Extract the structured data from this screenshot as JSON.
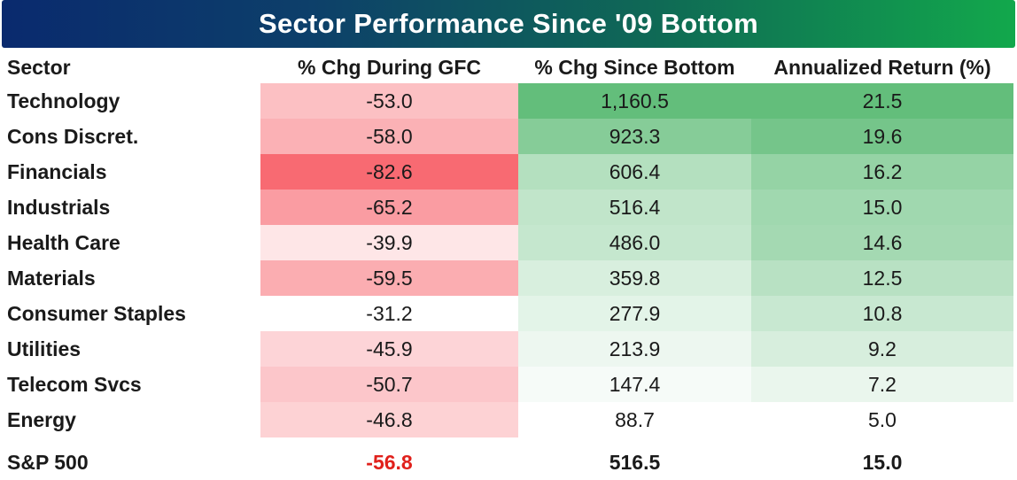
{
  "chart_data": {
    "type": "table",
    "title": "Sector Performance Since '09 Bottom",
    "columns": [
      "Sector",
      "% Chg During GFC",
      "% Chg Since Bottom",
      "Annualized Return (%)"
    ],
    "rows": [
      {
        "sector": "Technology",
        "gfc": "-53.0",
        "since": "1,160.5",
        "annual": "21.5"
      },
      {
        "sector": "Cons Discret.",
        "gfc": "-58.0",
        "since": "923.3",
        "annual": "19.6"
      },
      {
        "sector": "Financials",
        "gfc": "-82.6",
        "since": "606.4",
        "annual": "16.2"
      },
      {
        "sector": "Industrials",
        "gfc": "-65.2",
        "since": "516.4",
        "annual": "15.0"
      },
      {
        "sector": "Health Care",
        "gfc": "-39.9",
        "since": "486.0",
        "annual": "14.6"
      },
      {
        "sector": "Materials",
        "gfc": "-59.5",
        "since": "359.8",
        "annual": "12.5"
      },
      {
        "sector": "Consumer Staples",
        "gfc": "-31.2",
        "since": "277.9",
        "annual": "10.8"
      },
      {
        "sector": "Utilities",
        "gfc": "-45.9",
        "since": "213.9",
        "annual": "9.2"
      },
      {
        "sector": "Telecom Svcs",
        "gfc": "-50.7",
        "since": "147.4",
        "annual": "7.2"
      },
      {
        "sector": "Energy",
        "gfc": "-46.8",
        "since": "88.7",
        "annual": "5.0"
      }
    ],
    "total": {
      "sector": "S&P 500",
      "gfc": "-56.8",
      "since": "516.5",
      "annual": "15.0"
    }
  },
  "colors": {
    "negative_text": "#e0201b",
    "red_scale": "#f86a72",
    "green_scale": "#63be7b"
  }
}
